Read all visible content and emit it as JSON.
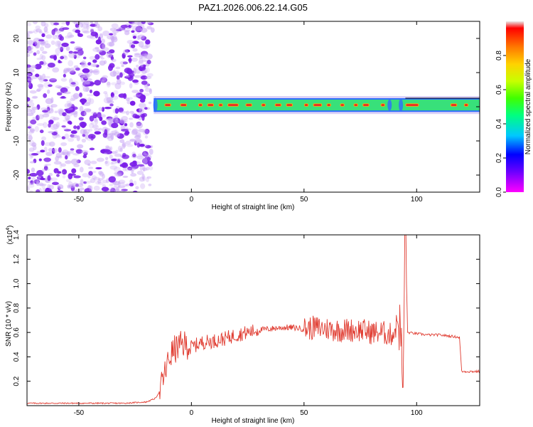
{
  "title": "PAZ1.2026.006.22.14.G05",
  "chart_data": [
    {
      "type": "heatmap",
      "name": "spectrogram",
      "xlabel": "Height of straight line (km)",
      "ylabel": "Frequency (Hz)",
      "xlim": [
        -73,
        128
      ],
      "ylim": [
        -25,
        25
      ],
      "x_ticks": [
        "-50",
        "0",
        "50",
        "100"
      ],
      "x_tick_values": [
        -50,
        0,
        50,
        100
      ],
      "y_ticks": [
        "-20",
        "-10",
        "0",
        "10",
        "20"
      ],
      "y_tick_values": [
        -20,
        -10,
        0,
        10,
        20
      ],
      "noise_region_x": [
        -73,
        -18
      ],
      "signal_start_x": -18,
      "signal_band_frequency_hz": [
        -1.5,
        2.5
      ],
      "colorbar": {
        "label": "Normalized spectral amplitude",
        "range": [
          0,
          1
        ],
        "ticks": [
          "0.0",
          "0.2",
          "0.4",
          "0.6",
          "0.8"
        ],
        "tick_values": [
          0.0,
          0.2,
          0.4,
          0.6,
          0.8
        ],
        "colors": [
          "#ff00ff",
          "#6a00ff",
          "#0000ff",
          "#00c8ff",
          "#00ff80",
          "#40ff00",
          "#c8ff00",
          "#ffd200",
          "#ff7800",
          "#ff0000",
          "#e8e8e8"
        ]
      },
      "colors": {
        "noise": "#7b1fe8",
        "noise_light": "#c9a8f5",
        "band_outer": "#2e6bff",
        "band_mid": "#38e07a",
        "band_core": "#e8242a",
        "band_hot": "#ffb000"
      }
    },
    {
      "type": "line",
      "name": "snr",
      "xlabel": "Height of straight line (km)",
      "ylabel": "SNR (10 * v/v)",
      "scale_label": "(x10",
      "scale_exp": "4",
      "scale_close": ")",
      "xlim": [
        -73,
        128
      ],
      "ylim": [
        0,
        1.4
      ],
      "x_ticks": [
        "-50",
        "0",
        "50",
        "100"
      ],
      "x_tick_values": [
        -50,
        0,
        50,
        100
      ],
      "y_ticks": [
        "0.2",
        "0.4",
        "0.6",
        "0.8",
        "1.0",
        "1.2",
        "1.4"
      ],
      "y_tick_values": [
        0.2,
        0.4,
        0.6,
        0.8,
        1.0,
        1.2,
        1.4
      ],
      "line_color": "#e03c31",
      "series": [
        {
          "x": [
            -73,
            -60,
            -45,
            -30,
            -20,
            -16,
            -14,
            -12,
            -10,
            -9,
            -8,
            -6,
            -4,
            -2,
            0,
            5,
            10,
            15,
            20,
            25,
            30,
            35,
            40,
            45,
            50,
            55,
            60,
            65,
            70,
            75,
            80,
            85,
            88,
            90,
            92,
            93,
            94,
            95,
            96,
            100,
            105,
            110,
            115,
            119,
            120,
            121,
            125,
            128
          ],
          "y": [
            0.02,
            0.02,
            0.02,
            0.02,
            0.03,
            0.06,
            0.12,
            0.25,
            0.38,
            0.42,
            0.45,
            0.48,
            0.5,
            0.5,
            0.48,
            0.52,
            0.53,
            0.55,
            0.58,
            0.6,
            0.62,
            0.63,
            0.64,
            0.64,
            0.63,
            0.64,
            0.63,
            0.62,
            0.62,
            0.62,
            0.6,
            0.6,
            0.58,
            0.6,
            0.72,
            0.55,
            0.1,
            1.4,
            0.6,
            0.59,
            0.58,
            0.58,
            0.57,
            0.56,
            0.28,
            0.28,
            0.28,
            0.28
          ]
        }
      ]
    }
  ]
}
